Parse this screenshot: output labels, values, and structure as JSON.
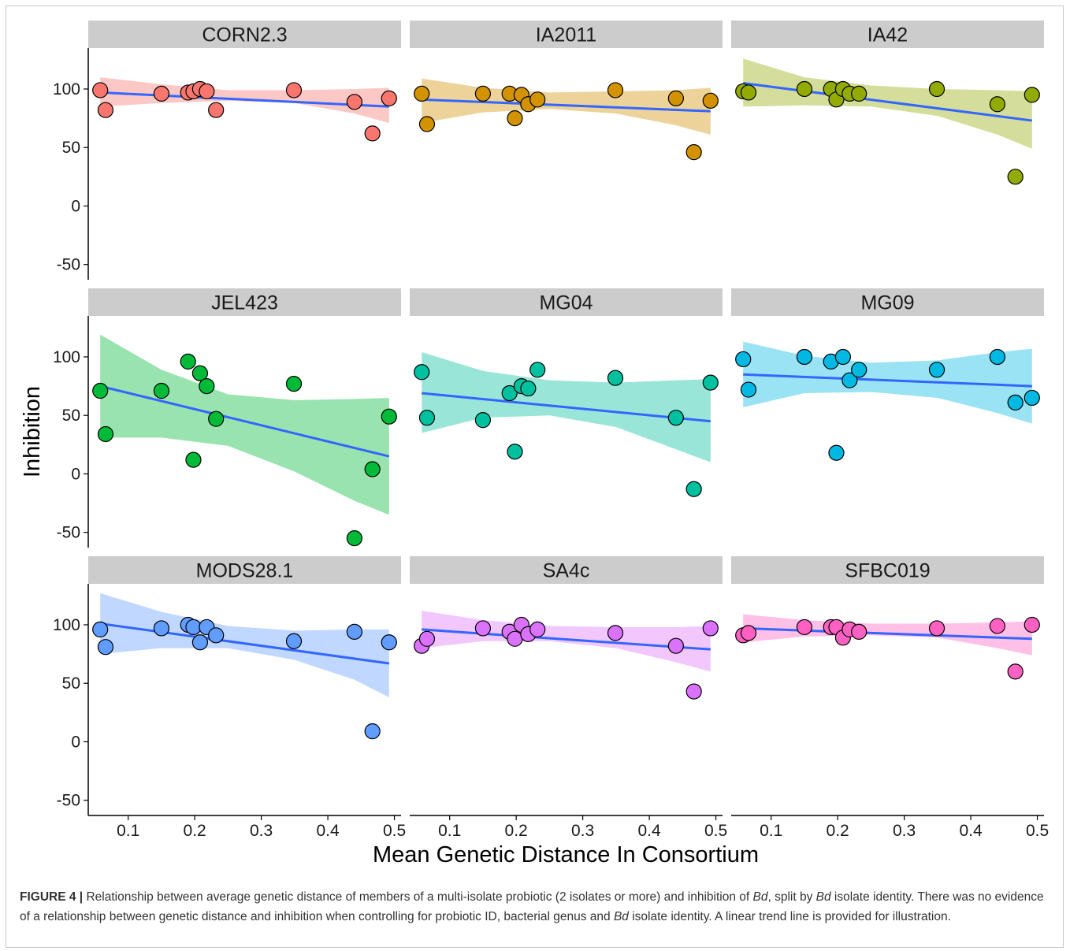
{
  "chart_data": {
    "type": "scatter",
    "layout": "facet-grid 3x3",
    "xlabel": "Mean Genetic Distance In Consortium",
    "ylabel": "Inhibition",
    "xlim": [
      0.04,
      0.51
    ],
    "ylim": [
      -63,
      135
    ],
    "x_ticks": [
      0.1,
      0.2,
      0.3,
      0.4,
      0.5
    ],
    "x_tick_labels": [
      "0.1",
      "0.2",
      "0.3",
      "0.4",
      "0.5"
    ],
    "y_ticks": [
      100,
      50,
      0,
      -50
    ],
    "y_tick_labels": [
      "100",
      "50",
      "0",
      "-50"
    ],
    "grid": false,
    "legend": "none",
    "trend_line_color": "#3366ff",
    "strip_color": "#cccccc",
    "facets": [
      {
        "name": "CORN2.3",
        "color": "#f8766d",
        "points": [
          [
            0.058,
            99
          ],
          [
            0.066,
            82
          ],
          [
            0.15,
            96
          ],
          [
            0.19,
            97
          ],
          [
            0.198,
            98
          ],
          [
            0.208,
            100
          ],
          [
            0.218,
            98
          ],
          [
            0.232,
            82
          ],
          [
            0.349,
            99
          ],
          [
            0.44,
            89
          ],
          [
            0.467,
            62
          ],
          [
            0.492,
            92
          ]
        ],
        "trend": [
          [
            0.058,
            97
          ],
          [
            0.492,
            85
          ]
        ],
        "ribbon_upper": [
          [
            0.058,
            110
          ],
          [
            0.15,
            104
          ],
          [
            0.25,
            99
          ],
          [
            0.35,
            99
          ],
          [
            0.44,
            100
          ],
          [
            0.492,
            101
          ]
        ],
        "ribbon_lower": [
          [
            0.058,
            85
          ],
          [
            0.15,
            88
          ],
          [
            0.25,
            90
          ],
          [
            0.35,
            88
          ],
          [
            0.44,
            79
          ],
          [
            0.492,
            71
          ]
        ]
      },
      {
        "name": "IA2011",
        "color": "#d39200",
        "points": [
          [
            0.058,
            96
          ],
          [
            0.066,
            70
          ],
          [
            0.15,
            96
          ],
          [
            0.19,
            96
          ],
          [
            0.198,
            75
          ],
          [
            0.208,
            95
          ],
          [
            0.218,
            87
          ],
          [
            0.232,
            91
          ],
          [
            0.349,
            99
          ],
          [
            0.44,
            92
          ],
          [
            0.467,
            46
          ],
          [
            0.492,
            90
          ]
        ],
        "trend": [
          [
            0.058,
            91
          ],
          [
            0.492,
            81
          ]
        ],
        "ribbon_upper": [
          [
            0.058,
            109
          ],
          [
            0.15,
            101
          ],
          [
            0.25,
            97
          ],
          [
            0.35,
            98
          ],
          [
            0.44,
            99
          ],
          [
            0.492,
            101
          ]
        ],
        "ribbon_lower": [
          [
            0.058,
            71
          ],
          [
            0.15,
            80
          ],
          [
            0.25,
            83
          ],
          [
            0.35,
            79
          ],
          [
            0.44,
            69
          ],
          [
            0.492,
            61
          ]
        ]
      },
      {
        "name": "IA42",
        "color": "#93aa00",
        "points": [
          [
            0.058,
            98
          ],
          [
            0.066,
            97
          ],
          [
            0.15,
            100
          ],
          [
            0.19,
            100
          ],
          [
            0.198,
            91
          ],
          [
            0.208,
            100
          ],
          [
            0.218,
            96
          ],
          [
            0.232,
            96
          ],
          [
            0.349,
            100
          ],
          [
            0.44,
            87
          ],
          [
            0.467,
            25
          ],
          [
            0.492,
            95
          ]
        ],
        "trend": [
          [
            0.058,
            105
          ],
          [
            0.492,
            73
          ]
        ],
        "ribbon_upper": [
          [
            0.058,
            126
          ],
          [
            0.15,
            110
          ],
          [
            0.25,
            103
          ],
          [
            0.35,
            100
          ],
          [
            0.44,
            99
          ],
          [
            0.492,
            98
          ]
        ],
        "ribbon_lower": [
          [
            0.058,
            85
          ],
          [
            0.15,
            86
          ],
          [
            0.25,
            85
          ],
          [
            0.35,
            77
          ],
          [
            0.44,
            61
          ],
          [
            0.492,
            49
          ]
        ]
      },
      {
        "name": "JEL423",
        "color": "#00ba38",
        "points": [
          [
            0.058,
            71
          ],
          [
            0.066,
            34
          ],
          [
            0.15,
            71
          ],
          [
            0.19,
            96
          ],
          [
            0.198,
            12
          ],
          [
            0.208,
            86
          ],
          [
            0.218,
            75
          ],
          [
            0.232,
            47
          ],
          [
            0.349,
            77
          ],
          [
            0.44,
            -55
          ],
          [
            0.467,
            4
          ],
          [
            0.492,
            49
          ]
        ],
        "trend": [
          [
            0.058,
            75
          ],
          [
            0.492,
            15
          ]
        ],
        "ribbon_upper": [
          [
            0.058,
            119
          ],
          [
            0.15,
            89
          ],
          [
            0.25,
            68
          ],
          [
            0.35,
            63
          ],
          [
            0.44,
            64
          ],
          [
            0.492,
            65
          ]
        ],
        "ribbon_lower": [
          [
            0.058,
            31
          ],
          [
            0.15,
            31
          ],
          [
            0.25,
            24
          ],
          [
            0.35,
            2
          ],
          [
            0.44,
            -23
          ],
          [
            0.492,
            -35
          ]
        ]
      },
      {
        "name": "MG04",
        "color": "#00c19f",
        "points": [
          [
            0.058,
            87
          ],
          [
            0.066,
            48
          ],
          [
            0.15,
            46
          ],
          [
            0.19,
            69
          ],
          [
            0.198,
            19
          ],
          [
            0.208,
            75
          ],
          [
            0.218,
            73
          ],
          [
            0.232,
            89
          ],
          [
            0.349,
            82
          ],
          [
            0.44,
            48
          ],
          [
            0.467,
            -13
          ],
          [
            0.492,
            78
          ]
        ],
        "trend": [
          [
            0.058,
            69
          ],
          [
            0.492,
            45
          ]
        ],
        "ribbon_upper": [
          [
            0.058,
            104
          ],
          [
            0.15,
            88
          ],
          [
            0.25,
            80
          ],
          [
            0.35,
            78
          ],
          [
            0.44,
            80
          ],
          [
            0.492,
            81
          ]
        ],
        "ribbon_lower": [
          [
            0.058,
            35
          ],
          [
            0.15,
            48
          ],
          [
            0.25,
            50
          ],
          [
            0.35,
            40
          ],
          [
            0.44,
            21
          ],
          [
            0.492,
            10
          ]
        ]
      },
      {
        "name": "MG09",
        "color": "#00b9e3",
        "points": [
          [
            0.058,
            98
          ],
          [
            0.066,
            72
          ],
          [
            0.15,
            100
          ],
          [
            0.19,
            96
          ],
          [
            0.198,
            18
          ],
          [
            0.208,
            100
          ],
          [
            0.218,
            80
          ],
          [
            0.232,
            89
          ],
          [
            0.349,
            89
          ],
          [
            0.44,
            100
          ],
          [
            0.467,
            61
          ],
          [
            0.492,
            65
          ]
        ],
        "trend": [
          [
            0.058,
            85
          ],
          [
            0.492,
            75
          ]
        ],
        "ribbon_upper": [
          [
            0.058,
            113
          ],
          [
            0.15,
            101
          ],
          [
            0.25,
            95
          ],
          [
            0.35,
            97
          ],
          [
            0.44,
            104
          ],
          [
            0.492,
            107
          ]
        ],
        "ribbon_lower": [
          [
            0.058,
            57
          ],
          [
            0.15,
            69
          ],
          [
            0.25,
            70
          ],
          [
            0.35,
            65
          ],
          [
            0.44,
            52
          ],
          [
            0.492,
            43
          ]
        ]
      },
      {
        "name": "MODS28.1",
        "color": "#619cff",
        "points": [
          [
            0.058,
            96
          ],
          [
            0.066,
            81
          ],
          [
            0.15,
            97
          ],
          [
            0.19,
            100
          ],
          [
            0.198,
            98
          ],
          [
            0.208,
            85
          ],
          [
            0.218,
            98
          ],
          [
            0.232,
            91
          ],
          [
            0.349,
            86
          ],
          [
            0.44,
            94
          ],
          [
            0.467,
            9
          ],
          [
            0.492,
            85
          ]
        ],
        "trend": [
          [
            0.058,
            101
          ],
          [
            0.492,
            67
          ]
        ],
        "ribbon_upper": [
          [
            0.058,
            127
          ],
          [
            0.15,
            111
          ],
          [
            0.25,
            99
          ],
          [
            0.35,
            95
          ],
          [
            0.44,
            96
          ],
          [
            0.492,
            96
          ]
        ],
        "ribbon_lower": [
          [
            0.058,
            75
          ],
          [
            0.15,
            80
          ],
          [
            0.25,
            80
          ],
          [
            0.35,
            70
          ],
          [
            0.44,
            53
          ],
          [
            0.492,
            38
          ]
        ]
      },
      {
        "name": "SA4c",
        "color": "#db72fb",
        "points": [
          [
            0.058,
            82
          ],
          [
            0.066,
            88
          ],
          [
            0.15,
            97
          ],
          [
            0.19,
            94
          ],
          [
            0.198,
            88
          ],
          [
            0.208,
            100
          ],
          [
            0.218,
            92
          ],
          [
            0.232,
            96
          ],
          [
            0.349,
            93
          ],
          [
            0.44,
            82
          ],
          [
            0.467,
            43
          ],
          [
            0.492,
            97
          ]
        ],
        "trend": [
          [
            0.058,
            96
          ],
          [
            0.492,
            79
          ]
        ],
        "ribbon_upper": [
          [
            0.058,
            112
          ],
          [
            0.15,
            104
          ],
          [
            0.25,
            99
          ],
          [
            0.35,
            98
          ],
          [
            0.44,
            98
          ],
          [
            0.492,
            99
          ]
        ],
        "ribbon_lower": [
          [
            0.058,
            80
          ],
          [
            0.15,
            86
          ],
          [
            0.25,
            86
          ],
          [
            0.35,
            80
          ],
          [
            0.44,
            68
          ],
          [
            0.492,
            60
          ]
        ]
      },
      {
        "name": "SFBC019",
        "color": "#ff61c3",
        "points": [
          [
            0.058,
            91
          ],
          [
            0.066,
            93
          ],
          [
            0.15,
            98
          ],
          [
            0.19,
            98
          ],
          [
            0.198,
            98
          ],
          [
            0.208,
            89
          ],
          [
            0.218,
            96
          ],
          [
            0.232,
            94
          ],
          [
            0.349,
            97
          ],
          [
            0.44,
            99
          ],
          [
            0.467,
            60
          ],
          [
            0.492,
            100
          ]
        ],
        "trend": [
          [
            0.058,
            97
          ],
          [
            0.492,
            88
          ]
        ],
        "ribbon_upper": [
          [
            0.058,
            109
          ],
          [
            0.15,
            104
          ],
          [
            0.25,
            101
          ],
          [
            0.35,
            101
          ],
          [
            0.44,
            102
          ],
          [
            0.492,
            103
          ]
        ],
        "ribbon_lower": [
          [
            0.058,
            85
          ],
          [
            0.15,
            90
          ],
          [
            0.25,
            91
          ],
          [
            0.35,
            89
          ],
          [
            0.44,
            80
          ],
          [
            0.492,
            74
          ]
        ]
      }
    ]
  },
  "caption": {
    "label": "FIGURE 4 |",
    "segments": [
      {
        "text": " Relationship between average genetic distance of members of a multi-isolate probiotic (2 isolates or more) and inhibition of ",
        "italic": false
      },
      {
        "text": "Bd",
        "italic": true
      },
      {
        "text": ", split by ",
        "italic": false
      },
      {
        "text": "Bd",
        "italic": true
      },
      {
        "text": " isolate identity. There was no evidence of a relationship between genetic distance and inhibition when controlling for probiotic ID, bacterial genus and ",
        "italic": false
      },
      {
        "text": "Bd",
        "italic": true
      },
      {
        "text": " isolate identity. A linear trend line is provided for illustration.",
        "italic": false
      }
    ]
  }
}
